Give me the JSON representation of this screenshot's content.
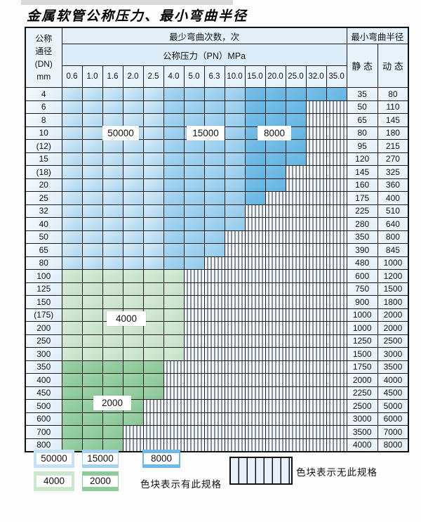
{
  "title": "金属软管公称压力、最小弯曲半径",
  "colors": {
    "blue_50000": "#c9e2f4",
    "blue_15000": "#9fcfee",
    "blue_8000": "#6cb9e5",
    "green_4000": "#cde6ce",
    "green_2000": "#92cb9e",
    "hatch_background": "#f1f7fc",
    "grid_line": "#1b1b1b",
    "header_background": "#e3f0fa"
  },
  "table": {
    "dn_header_lines": [
      "公称",
      "通径",
      "(DN)",
      "mm"
    ],
    "bend_cycles_header": "最少弯曲次数，次",
    "pressure_header": "公称压力（PN）MPa",
    "radius_header": "最小弯曲半径",
    "static_header": "静 态",
    "dynamic_header": "动 态",
    "pressure_columns": [
      "0.6",
      "1.0",
      "1.6",
      "2.0",
      "2.5",
      "4.0",
      "5.0",
      "6.3",
      "10.0",
      "15.0",
      "20.0",
      "25.0",
      "32.0",
      "35.0"
    ],
    "zone_labels": [
      "50000",
      "15000",
      "8000",
      "4000",
      "2000"
    ],
    "blue_zone_split": {
      "50000_cols": "0.6-2.5",
      "15000_cols": "4.0-10.0",
      "8000_cols": "15.0-35.0"
    },
    "rows": [
      {
        "dn": "4",
        "through": 13,
        "palette": "blue",
        "static": "35",
        "dynamic": "80"
      },
      {
        "dn": "6",
        "through": 11,
        "palette": "blue",
        "static": "50",
        "dynamic": "110"
      },
      {
        "dn": "8",
        "through": 11,
        "palette": "blue",
        "static": "65",
        "dynamic": "145"
      },
      {
        "dn": "10",
        "through": 11,
        "palette": "blue",
        "static": "80",
        "dynamic": "180"
      },
      {
        "dn": "(12)",
        "through": 11,
        "palette": "blue",
        "static": "95",
        "dynamic": "215"
      },
      {
        "dn": "15",
        "through": 11,
        "palette": "blue",
        "static": "120",
        "dynamic": "270"
      },
      {
        "dn": "(18)",
        "through": 10,
        "palette": "blue",
        "static": "145",
        "dynamic": "325"
      },
      {
        "dn": "20",
        "through": 10,
        "palette": "blue",
        "static": "160",
        "dynamic": "360"
      },
      {
        "dn": "25",
        "through": 9,
        "palette": "blue",
        "static": "175",
        "dynamic": "400"
      },
      {
        "dn": "32",
        "through": 8,
        "palette": "blue",
        "static": "225",
        "dynamic": "510"
      },
      {
        "dn": "40",
        "through": 8,
        "palette": "blue",
        "static": "280",
        "dynamic": "640"
      },
      {
        "dn": "50",
        "through": 7,
        "palette": "blue",
        "static": "350",
        "dynamic": "800"
      },
      {
        "dn": "65",
        "through": 7,
        "palette": "blue",
        "static": "390",
        "dynamic": "845"
      },
      {
        "dn": "80",
        "through": 6,
        "palette": "blue",
        "static": "480",
        "dynamic": "1000"
      },
      {
        "dn": "100",
        "through": 5,
        "palette": "g4",
        "static": "600",
        "dynamic": "1200"
      },
      {
        "dn": "125",
        "through": 5,
        "palette": "g4",
        "static": "750",
        "dynamic": "1500"
      },
      {
        "dn": "150",
        "through": 5,
        "palette": "g4",
        "static": "900",
        "dynamic": "1800"
      },
      {
        "dn": "(175)",
        "through": 5,
        "palette": "g4",
        "static": "1000",
        "dynamic": "2000"
      },
      {
        "dn": "200",
        "through": 5,
        "palette": "g4",
        "static": "1000",
        "dynamic": "2000"
      },
      {
        "dn": "250",
        "through": 5,
        "palette": "g4",
        "static": "1250",
        "dynamic": "2500"
      },
      {
        "dn": "300",
        "through": 5,
        "palette": "g4",
        "static": "1500",
        "dynamic": "3000"
      },
      {
        "dn": "350",
        "through": 4,
        "palette": "g2",
        "static": "1750",
        "dynamic": "3500"
      },
      {
        "dn": "400",
        "through": 4,
        "palette": "g2",
        "static": "2000",
        "dynamic": "4000"
      },
      {
        "dn": "450",
        "through": 4,
        "palette": "g2",
        "static": "2250",
        "dynamic": "4500"
      },
      {
        "dn": "500",
        "through": 3,
        "palette": "g2",
        "static": "2500",
        "dynamic": "5000"
      },
      {
        "dn": "600",
        "through": 3,
        "palette": "g2",
        "static": "3000",
        "dynamic": "6000"
      },
      {
        "dn": "700",
        "through": 2,
        "palette": "g2",
        "static": "3500",
        "dynamic": "7000"
      },
      {
        "dn": "800",
        "through": 2,
        "palette": "g2",
        "static": "4000",
        "dynamic": "8000"
      }
    ]
  },
  "legend": {
    "swatches": [
      {
        "label": "50000",
        "color": "#c6e1f4"
      },
      {
        "label": "15000",
        "color": "#a3d1ef"
      },
      {
        "label": "8000",
        "color": "#6cb9e5"
      },
      {
        "label": "4000",
        "color": "#cde6ce"
      },
      {
        "label": "2000",
        "color": "#8fca9b"
      }
    ],
    "has_spec_label": "色块表示有此规格",
    "no_spec_label": "色块表示无此规格"
  }
}
